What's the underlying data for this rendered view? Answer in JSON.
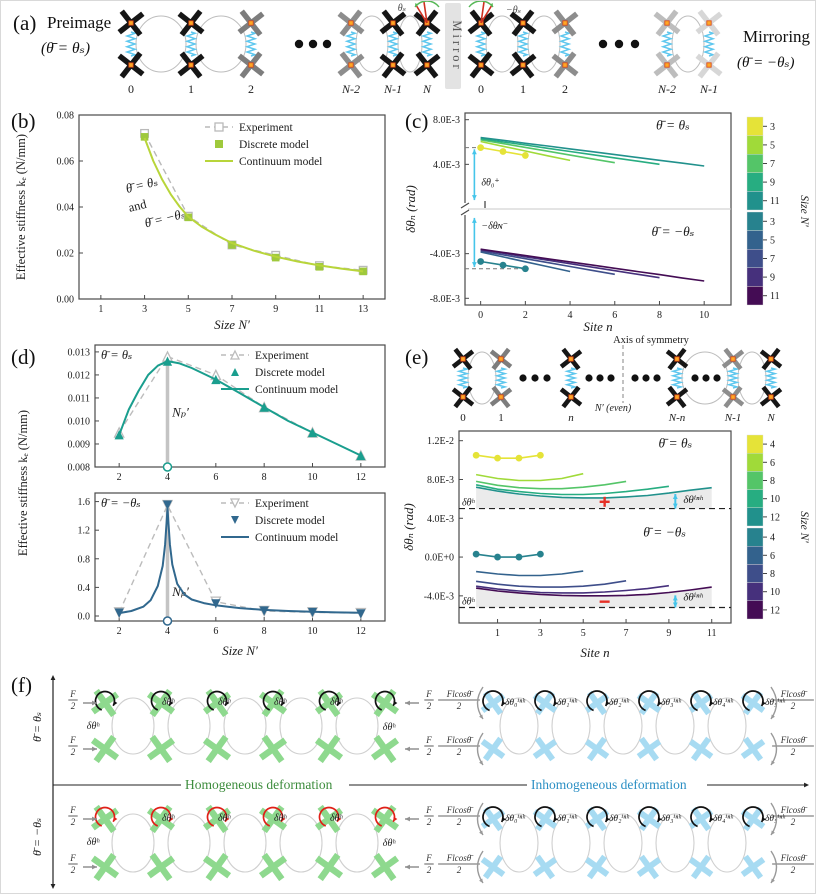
{
  "panel_labels": {
    "a": "(a)",
    "b": "(b)",
    "c": "(c)",
    "d": "(d)",
    "e": "(e)",
    "f": "(f)"
  },
  "panel_a": {
    "preimage_title": "Preimage",
    "preimage_eq": "(θ̄ = θₛ)",
    "mirror": "Mirror",
    "mirroring_title": "Mirroring",
    "mirroring_eq": "(θ̄ = −θₛ)",
    "theta_N_label": "θₛ",
    "theta_0_label": "−θₛ",
    "left_sites": [
      "0",
      "1",
      "2",
      "N-2",
      "N-1",
      "N"
    ],
    "right_sites": [
      "0",
      "1",
      "2",
      "N-2",
      "N-1"
    ]
  },
  "chart_data": [
    {
      "id": "b",
      "type": "line",
      "xlabel": "Size N′",
      "ylabel": "Effective stiffness kₑ (N/mm)",
      "xlim": [
        0,
        14
      ],
      "ylim": [
        0,
        0.08
      ],
      "xticks": [
        1,
        3,
        5,
        7,
        9,
        11,
        13
      ],
      "yticks": [
        0,
        0.02,
        0.04,
        0.06,
        0.08
      ],
      "ytick_labels": [
        "0.00",
        "0.02",
        "0.04",
        "0.06",
        "0.08"
      ],
      "annotation_lines": [
        "θ̄ = θₛ",
        "and",
        "θ̄ = −θₛ"
      ],
      "series": [
        {
          "name": "Experiment",
          "color": "#b9b9b9",
          "line": "dashed",
          "marker": "sq",
          "open": true,
          "x": [
            3,
            5,
            7,
            9,
            11,
            13
          ],
          "y": [
            0.072,
            0.036,
            0.0235,
            0.019,
            0.0145,
            0.0125
          ]
        },
        {
          "name": "Discrete model",
          "color": "#9fc93c",
          "line": "none",
          "marker": "sq",
          "open": false,
          "x": [
            3,
            5,
            7,
            9,
            11,
            13
          ],
          "y": [
            0.0705,
            0.0355,
            0.0235,
            0.018,
            0.014,
            0.012
          ]
        },
        {
          "name": "Continuum model",
          "color": "#b8d53a",
          "line": "solid",
          "marker": null,
          "x": [
            3,
            3.4,
            3.8,
            4.2,
            4.6,
            5,
            5.6,
            6.2,
            7,
            8,
            9,
            10,
            11,
            12,
            13
          ],
          "y": [
            0.07,
            0.06,
            0.052,
            0.0455,
            0.0402,
            0.0358,
            0.0315,
            0.0282,
            0.0243,
            0.021,
            0.0184,
            0.0163,
            0.0146,
            0.0132,
            0.012
          ]
        }
      ]
    },
    {
      "id": "c",
      "type": "line",
      "xlabel": "Site n",
      "ylabel": "δθₙ (rad)",
      "xlim": [
        -0.7,
        11.2
      ],
      "ylim_e3": [
        -8.6,
        8.6
      ],
      "y_scale": 0.001,
      "xticks": [
        0,
        2,
        4,
        6,
        8,
        10
      ],
      "yticks_e3": [
        8,
        4,
        -4,
        -8
      ],
      "ytick_labels": [
        "8.0E-3",
        "4.0E-3",
        "-4.0E-3",
        "-8.0E-3"
      ],
      "label_top": "θ̄ = θₛ",
      "label_bottom": "θ̄ = −θₛ",
      "ann_top": "δθ₀⁺",
      "ann_mid": "‖",
      "ann_bot": "−δθɴ⁻",
      "dash_top_e3": 5.5,
      "dash_bot_e3": -5.35,
      "groups_top": [
        {
          "size": 3,
          "color": "#e5e338",
          "markers": true,
          "x": [
            0,
            1,
            2
          ],
          "y_e3": [
            5.5,
            5.15,
            4.8
          ]
        },
        {
          "size": 5,
          "color": "#a0da39",
          "x": [
            0,
            1,
            2,
            3,
            4
          ],
          "y_e3": [
            6.05,
            5.62,
            5.2,
            4.77,
            4.35
          ]
        },
        {
          "size": 7,
          "color": "#54c568",
          "x": [
            0,
            1,
            2,
            3,
            4,
            5,
            6
          ],
          "y_e3": [
            6.2,
            5.86,
            5.52,
            5.18,
            4.83,
            4.49,
            4.15
          ]
        },
        {
          "size": 9,
          "color": "#27ad81",
          "x": [
            0,
            1,
            2,
            3,
            4,
            5,
            6,
            7,
            8
          ],
          "y_e3": [
            6.3,
            6.01,
            5.73,
            5.44,
            5.15,
            4.86,
            4.58,
            4.29,
            4.0
          ]
        },
        {
          "size": 11,
          "color": "#21918c",
          "x": [
            0,
            1,
            2,
            3,
            4,
            5,
            6,
            7,
            8,
            9,
            10
          ],
          "y_e3": [
            6.4,
            6.15,
            5.89,
            5.64,
            5.38,
            5.13,
            4.87,
            4.62,
            4.36,
            4.11,
            3.85
          ]
        }
      ],
      "groups_bottom": [
        {
          "size": 3,
          "color": "#27828e",
          "markers": true,
          "x": [
            0,
            1,
            2
          ],
          "y_e3": [
            -4.7,
            -5.03,
            -5.35
          ]
        },
        {
          "size": 5,
          "color": "#33628d",
          "x": [
            0,
            1,
            2,
            3,
            4
          ],
          "y_e3": [
            -3.85,
            -4.29,
            -4.73,
            -5.16,
            -5.6
          ]
        },
        {
          "size": 7,
          "color": "#3e4e8a",
          "x": [
            0,
            1,
            2,
            3,
            4,
            5,
            6
          ],
          "y_e3": [
            -3.75,
            -4.1,
            -4.45,
            -4.8,
            -5.15,
            -5.5,
            -5.85
          ]
        },
        {
          "size": 9,
          "color": "#46307c",
          "x": [
            0,
            1,
            2,
            3,
            4,
            5,
            6,
            7,
            8
          ],
          "y_e3": [
            -3.65,
            -3.96,
            -4.28,
            -4.59,
            -4.9,
            -5.21,
            -5.53,
            -5.84,
            -6.15
          ]
        },
        {
          "size": 11,
          "color": "#440c54",
          "x": [
            0,
            1,
            2,
            3,
            4,
            5,
            6,
            7,
            8,
            9,
            10
          ],
          "y_e3": [
            -3.6,
            -3.89,
            -4.17,
            -4.46,
            -4.74,
            -5.03,
            -5.31,
            -5.6,
            -5.88,
            -6.17,
            -6.45
          ]
        }
      ],
      "colorbar": {
        "title": "Size N′",
        "top_labels": [
          "3",
          "5",
          "7",
          "9",
          "11"
        ],
        "bottom_labels": [
          "3",
          "5",
          "7",
          "9",
          "11"
        ],
        "top_colors": [
          "#e5e338",
          "#a0da39",
          "#54c568",
          "#27ad81",
          "#21918c"
        ],
        "bottom_colors": [
          "#27828e",
          "#33628d",
          "#3e4e8a",
          "#46307c",
          "#440c54"
        ]
      }
    },
    {
      "id": "d_top",
      "type": "line",
      "ylabel_shared": "Effective stiffness kₑ (N/mm)",
      "xlim": [
        1,
        13
      ],
      "ylim": [
        0.008,
        0.0133
      ],
      "xticks": [
        2,
        4,
        6,
        8,
        10,
        12
      ],
      "yticks": [
        0.008,
        0.009,
        0.01,
        0.011,
        0.012,
        0.013
      ],
      "ytick_labels": [
        "0.008",
        "0.009",
        "0.010",
        "0.011",
        "0.012",
        "0.013"
      ],
      "annotation": "θ̄ = θₛ",
      "np_label": "Nₚ′",
      "np_x": 4,
      "np_peak": 0.0126,
      "series": [
        {
          "name": "Experiment",
          "color": "#bcbcbc",
          "line": "dashed",
          "marker": "tu",
          "open": true,
          "x": [
            2,
            4,
            6,
            8,
            10,
            12
          ],
          "y": [
            0.0095,
            0.0128,
            0.012,
            0.0106,
            0.0095,
            0.0085
          ]
        },
        {
          "name": "Discrete model",
          "color": "#1a9e8e",
          "line": "none",
          "marker": "tu",
          "open": false,
          "x": [
            2,
            4,
            6,
            8,
            10,
            12
          ],
          "y": [
            0.0094,
            0.0126,
            0.0118,
            0.0106,
            0.0095,
            0.0085
          ]
        },
        {
          "name": "Continuum model",
          "color": "#1a9e8e",
          "line": "solid",
          "marker": null,
          "x": [
            2,
            2.4,
            2.8,
            3.2,
            3.6,
            4,
            4.5,
            5,
            6,
            7,
            8,
            9,
            10,
            11,
            12
          ],
          "y": [
            0.0094,
            0.0105,
            0.0113,
            0.012,
            0.0124,
            0.0126,
            0.0125,
            0.0123,
            0.0118,
            0.0112,
            0.0106,
            0.01,
            0.0095,
            0.009,
            0.0085
          ]
        }
      ]
    },
    {
      "id": "d_bottom",
      "type": "line",
      "xlabel": "Size N′",
      "xlim": [
        1,
        13
      ],
      "ylim": [
        -0.07,
        1.72
      ],
      "xticks": [
        2,
        4,
        6,
        8,
        10,
        12
      ],
      "yticks": [
        0,
        0.4,
        0.8,
        1.2,
        1.6
      ],
      "ytick_labels": [
        "0.0",
        "0.4",
        "0.8",
        "1.2",
        "1.6"
      ],
      "annotation": "θ̄ = −θₛ",
      "np_label": "Nₚ′",
      "np_x": 4,
      "np_peak": 1.5,
      "series": [
        {
          "name": "Experiment",
          "color": "#bcbcbc",
          "line": "dashed",
          "marker": "td",
          "open": true,
          "x": [
            2,
            4,
            6,
            8,
            10,
            12
          ],
          "y": [
            0.05,
            1.55,
            0.2,
            0.07,
            0.05,
            0.04
          ]
        },
        {
          "name": "Discrete model",
          "color": "#31688e",
          "line": "none",
          "marker": "td",
          "open": false,
          "x": [
            2,
            4,
            6,
            8,
            10,
            12
          ],
          "y": [
            0.04,
            1.55,
            0.17,
            0.07,
            0.05,
            0.03
          ]
        },
        {
          "name": "Continuum model",
          "color": "#31688e",
          "line": "solid",
          "marker": null,
          "x": [
            2,
            2.5,
            3,
            3.3,
            3.6,
            3.8,
            3.9,
            4,
            4.1,
            4.2,
            4.4,
            4.7,
            5,
            5.5,
            6,
            6.5,
            7,
            8,
            9,
            10,
            11,
            12
          ],
          "y": [
            0.04,
            0.07,
            0.13,
            0.22,
            0.42,
            0.7,
            1.0,
            1.5,
            1.0,
            0.72,
            0.45,
            0.3,
            0.23,
            0.18,
            0.15,
            0.13,
            0.11,
            0.085,
            0.07,
            0.06,
            0.05,
            0.045
          ]
        }
      ]
    },
    {
      "id": "e",
      "type": "line",
      "xlabel": "Site n",
      "ylabel": "δθₙ (rad)",
      "y_scale": 0.001,
      "xlim": [
        -0.8,
        11.9
      ],
      "ylim_e3": [
        -6.8,
        13.0
      ],
      "xticks": [
        1,
        3,
        5,
        7,
        9,
        11
      ],
      "yticks_e3": [
        12,
        8,
        4,
        0,
        -4
      ],
      "ytick_labels": [
        "1.2E-2",
        "8.0E-3",
        "4.0E-3",
        "0.0E+0",
        "-4.0E-3"
      ],
      "label_top": "θ̄ = θₛ",
      "label_bottom": "θ̄ = −θₛ",
      "dash_top_e3": 5.0,
      "dash_bot_e3": -5.2,
      "dash_label": "δθʰ",
      "inh_label": "δθⁱⁿʰ",
      "plus": "+",
      "minus": "−",
      "groups_top": [
        {
          "size": 4,
          "color": "#e5e338",
          "markers": true,
          "x": [
            0,
            1,
            2,
            3
          ],
          "y_e3": [
            10.5,
            10.2,
            10.2,
            10.5
          ]
        },
        {
          "size": 6,
          "color": "#a0da39",
          "x": [
            0,
            1,
            2,
            3,
            4,
            5
          ],
          "y_e3": [
            8.5,
            8.1,
            7.9,
            7.9,
            8.1,
            8.6
          ]
        },
        {
          "size": 8,
          "color": "#54c568",
          "x": [
            0,
            1,
            2,
            3,
            4,
            5,
            6,
            7
          ],
          "y_e3": [
            7.8,
            7.4,
            7.15,
            7.05,
            7.05,
            7.2,
            7.45,
            7.8
          ]
        },
        {
          "size": 10,
          "color": "#27ad81",
          "x": [
            0,
            1,
            2,
            3,
            4,
            5,
            6,
            7,
            8,
            9
          ],
          "y_e3": [
            7.45,
            7.0,
            6.75,
            6.55,
            6.45,
            6.45,
            6.55,
            6.75,
            7.0,
            7.3
          ]
        },
        {
          "size": 12,
          "color": "#21918c",
          "x": [
            0,
            1,
            2,
            3,
            4,
            5,
            6,
            7,
            8,
            9,
            10,
            11
          ],
          "y_e3": [
            7.2,
            6.8,
            6.5,
            6.3,
            6.15,
            6.1,
            6.1,
            6.2,
            6.35,
            6.6,
            6.9,
            7.15
          ]
        }
      ],
      "groups_bottom": [
        {
          "size": 4,
          "color": "#27828e",
          "markers": true,
          "x": [
            0,
            1,
            2,
            3
          ],
          "y_e3": [
            0.3,
            0.0,
            0.0,
            0.3
          ]
        },
        {
          "size": 6,
          "color": "#33628d",
          "x": [
            0,
            1,
            2,
            3,
            4,
            5
          ],
          "y_e3": [
            -1.5,
            -1.75,
            -1.9,
            -1.9,
            -1.75,
            -1.45
          ]
        },
        {
          "size": 8,
          "color": "#3e4e8a",
          "x": [
            0,
            1,
            2,
            3,
            4,
            5,
            6,
            7
          ],
          "y_e3": [
            -2.5,
            -2.8,
            -3.0,
            -3.1,
            -3.1,
            -3.0,
            -2.8,
            -2.45
          ]
        },
        {
          "size": 10,
          "color": "#46307c",
          "x": [
            0,
            1,
            2,
            3,
            4,
            5,
            6,
            7,
            8,
            9
          ],
          "y_e3": [
            -3.0,
            -3.3,
            -3.5,
            -3.65,
            -3.7,
            -3.7,
            -3.6,
            -3.45,
            -3.25,
            -2.95
          ]
        },
        {
          "size": 12,
          "color": "#440c54",
          "x": [
            0,
            1,
            2,
            3,
            4,
            5,
            6,
            7,
            8,
            9,
            10,
            11
          ],
          "y_e3": [
            -3.2,
            -3.5,
            -3.7,
            -3.85,
            -3.95,
            -4.0,
            -4.0,
            -3.95,
            -3.85,
            -3.65,
            -3.4,
            -3.1
          ]
        }
      ],
      "colorbar": {
        "title": "Size N′",
        "top_labels": [
          "4",
          "6",
          "8",
          "10",
          "12"
        ],
        "bottom_labels": [
          "4",
          "6",
          "8",
          "10",
          "12"
        ],
        "top_colors": [
          "#e5e338",
          "#a0da39",
          "#54c568",
          "#27ad81",
          "#21918c"
        ],
        "bottom_colors": [
          "#27828e",
          "#33628d",
          "#3e4e8a",
          "#46307c",
          "#440c54"
        ]
      }
    }
  ],
  "panel_e_diagram": {
    "axis_label": "Axis of symmetry",
    "axis_sub": "N′ (even)",
    "sites": [
      "0",
      "1",
      "n",
      "N-n",
      "N-1",
      "N"
    ]
  },
  "panel_f": {
    "row_label_top": "θ̄ = θₛ",
    "row_label_bottom": "θ̄ = −θₛ",
    "homogeneous": "Homogeneous deformation",
    "inhomogeneous": "Inhomogeneous deformation",
    "force_num": "F",
    "force_den": "2",
    "moment_num": "Flcosθ̄",
    "moment_den": "2",
    "dtheta_h": "δθʰ",
    "dtheta_inh": [
      "δθ₀ⁱⁿʰ",
      "δθ₁ⁱⁿʰ",
      "δθ₂ⁱⁿʰ",
      "δθ₃ⁱⁿʰ",
      "δθ₄ⁱⁿʰ",
      "δθ₅ⁱⁿʰ"
    ],
    "green": "#8ed98e",
    "blue": "#a7dbf2",
    "homogeneous_color": "#3c8c3c",
    "inhomogeneous_color": "#2b8fc4",
    "arrow_black": "#111111",
    "arrow_red": "#e02018"
  }
}
